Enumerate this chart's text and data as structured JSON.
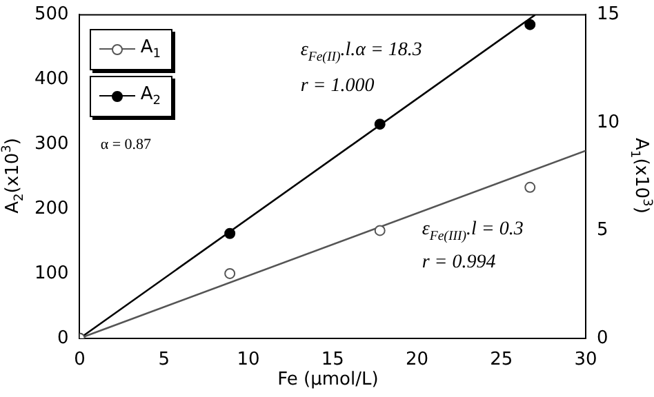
{
  "chart_data": {
    "type": "scatter",
    "xlabel": "Fe    (µmol/L)",
    "ylabel": "A$_{2}$(x10$^{3}$)",
    "y2label": "A$_{1}$(x10$^{3}$)",
    "series": [
      {
        "name": "A$_{1}$",
        "color": "#555555",
        "axis": "y2",
        "x": [
          0,
          8.9,
          17.8,
          26.7
        ],
        "values": [
          0,
          3.0,
          5.0,
          7.0
        ]
      },
      {
        "name": "A$_{2}$",
        "color": "#000000",
        "x": [
          0,
          8.9,
          17.8,
          26.7
        ],
        "values": [
          0,
          162,
          331,
          485
        ]
      },
      {
        "type": "line",
        "color": "#555555",
        "axis": "y2",
        "marker": "none",
        "x": [
          0,
          30
        ],
        "values": [
          0,
          8.7
        ]
      },
      {
        "type": "line",
        "color": "#000000",
        "marker": "none",
        "x": [
          0,
          27
        ],
        "values": [
          0,
          500
        ]
      }
    ],
    "xlim": [
      0,
      30
    ],
    "xticks": [
      0,
      5,
      10,
      15,
      20,
      25,
      30
    ],
    "ylim": [
      0,
      500
    ],
    "yticks": [
      0,
      100,
      200,
      300,
      400,
      500
    ],
    "y2lim": [
      0,
      15
    ],
    "y2ticks": [
      0,
      5,
      10,
      15
    ],
    "annotations": [
      "ε$_{Fe(II)}$.l.α = 18.3",
      "r = 1.000",
      "ε$_{Fe(III)}$.l = 0.3",
      "r = 0.994",
      "α = 0.87"
    ],
    "legend": "top left",
    "marker": "circle",
    "grid": false
  }
}
